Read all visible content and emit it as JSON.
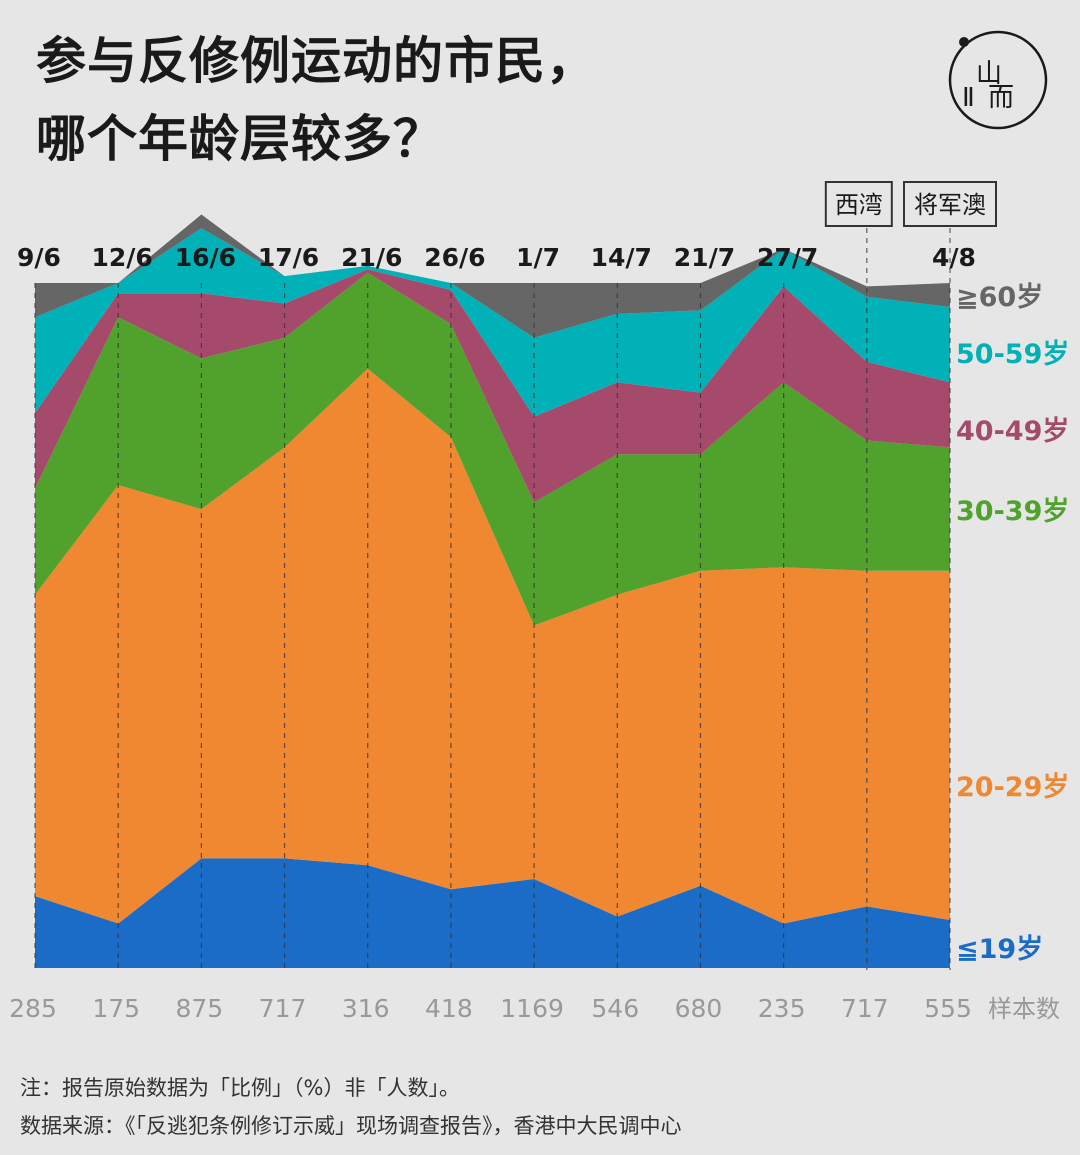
{
  "title": {
    "line1": "参与反修例运动的市民，",
    "line2": "哪个年龄层较多？"
  },
  "logo": {
    "text1": "山",
    "text2": "而"
  },
  "chart_data": {
    "type": "area",
    "stacked": true,
    "normalized": "percent",
    "x": [
      "9/6",
      "12/6",
      "16/6",
      "17/6",
      "21/6",
      "26/6",
      "1/7",
      "14/7",
      "21/7",
      "27/7",
      "",
      "4/8"
    ],
    "sample_sizes": [
      "285",
      "175",
      "875",
      "717",
      "316",
      "418",
      "1169",
      "546",
      "680",
      "235",
      "717",
      "555"
    ],
    "sample_label": "样本数",
    "events": [
      {
        "label": "西湾",
        "index": 10
      },
      {
        "label": "将军澳",
        "index": 11
      }
    ],
    "series": [
      {
        "name": "≦19岁",
        "color": "#1a6cc7",
        "values": [
          10.5,
          6.5,
          16,
          16,
          15,
          11.5,
          13,
          7.5,
          12,
          6.5,
          9,
          7
        ]
      },
      {
        "name": "20-29岁",
        "color": "#f08731",
        "values": [
          44,
          64,
          51,
          60,
          72.5,
          66,
          37,
          47,
          46,
          52,
          49,
          51
        ]
      },
      {
        "name": "30-39岁",
        "color": "#50a22d",
        "values": [
          15.5,
          24.5,
          22,
          16,
          14,
          16.5,
          18,
          20.5,
          17,
          27,
          19,
          18
        ]
      },
      {
        "name": "40-49岁",
        "color": "#a64a6c",
        "values": [
          11,
          3.5,
          9.5,
          5,
          0.5,
          5,
          12.5,
          10.5,
          9,
          14,
          11.5,
          9.5
        ]
      },
      {
        "name": "50-59岁",
        "color": "#00b2b7",
        "values": [
          14,
          1.5,
          9.5,
          4,
          0.5,
          1,
          11.5,
          10,
          12,
          5.5,
          9.5,
          11
        ]
      },
      {
        "name": "≧60岁",
        "color": "#666666",
        "values": [
          5,
          0,
          2,
          0,
          0,
          0,
          8,
          4.5,
          4,
          0,
          1.5,
          3.5
        ]
      }
    ]
  },
  "notes": {
    "line1": "注：报告原始数据为「比例」（%）非「人数」。",
    "line2": "数据来源：《「反逃犯条例修订示威」现场调查报告》，香港中大民调中心"
  }
}
